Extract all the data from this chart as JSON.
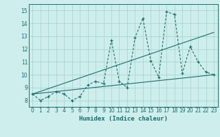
{
  "title": "",
  "xlabel": "Humidex (Indice chaleur)",
  "bg_color": "#ceeeed",
  "grid_color": "#aad4d0",
  "line_color": "#1a6b6b",
  "xlim": [
    -0.5,
    23.5
  ],
  "ylim": [
    7.5,
    15.5
  ],
  "xticks": [
    0,
    1,
    2,
    3,
    4,
    5,
    6,
    7,
    8,
    9,
    10,
    11,
    12,
    13,
    14,
    15,
    16,
    17,
    18,
    19,
    20,
    21,
    22,
    23
  ],
  "yticks": [
    8,
    9,
    10,
    11,
    12,
    13,
    14,
    15
  ],
  "series": [
    [
      0,
      8.5
    ],
    [
      1,
      8.0
    ],
    [
      2,
      8.3
    ],
    [
      3,
      8.7
    ],
    [
      4,
      8.5
    ],
    [
      5,
      8.0
    ],
    [
      6,
      8.3
    ],
    [
      7,
      9.2
    ],
    [
      8,
      9.5
    ],
    [
      9,
      9.3
    ],
    [
      10,
      12.7
    ],
    [
      11,
      9.5
    ],
    [
      12,
      9.0
    ],
    [
      13,
      12.9
    ],
    [
      14,
      14.4
    ],
    [
      15,
      11.1
    ],
    [
      16,
      9.8
    ],
    [
      17,
      14.9
    ],
    [
      18,
      14.7
    ],
    [
      19,
      10.1
    ],
    [
      20,
      12.2
    ],
    [
      21,
      11.0
    ],
    [
      22,
      10.2
    ],
    [
      23,
      10.0
    ]
  ],
  "line2": [
    [
      0,
      8.5
    ],
    [
      23,
      13.3
    ]
  ],
  "line3": [
    [
      0,
      8.5
    ],
    [
      23,
      10.0
    ]
  ]
}
